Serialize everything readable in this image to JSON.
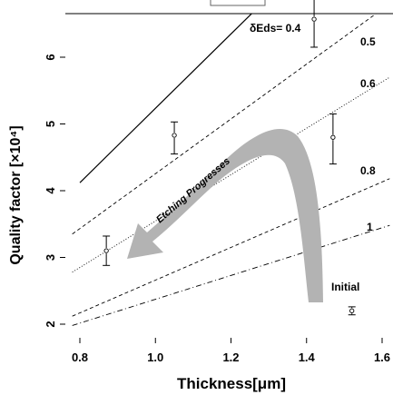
{
  "chart_data": {
    "type": "line",
    "xlabel": "Thickness[μm]",
    "ylabel": "Quality factor [×10⁴]",
    "xlim": [
      0.76,
      1.64
    ],
    "ylim": [
      1.9,
      6.95
    ],
    "x_ticks": [
      "0.8",
      "1.0",
      "1.2",
      "1.4",
      "1.6"
    ],
    "y_ticks": [
      "2",
      "3",
      "4",
      "5",
      "6"
    ],
    "grid": false,
    "series": [
      {
        "name": "δEds= 0.4",
        "style": "solid",
        "points": [
          [
            0.8,
            4.12
          ],
          [
            1.29,
            6.85
          ]
        ]
      },
      {
        "name": "0.5",
        "style": "dashed",
        "points": [
          [
            0.78,
            3.35
          ],
          [
            1.62,
            6.8
          ]
        ]
      },
      {
        "name": "0.6",
        "style": "dotted",
        "points": [
          [
            0.78,
            2.78
          ],
          [
            1.62,
            5.7
          ]
        ]
      },
      {
        "name": "0.8",
        "style": "dashed",
        "points": [
          [
            0.78,
            2.12
          ],
          [
            1.62,
            4.18
          ]
        ]
      },
      {
        "name": "1",
        "style": "dashdot",
        "points": [
          [
            0.78,
            1.98
          ],
          [
            1.62,
            3.48
          ]
        ]
      }
    ],
    "measurements": [
      {
        "x": 0.87,
        "y": 3.1,
        "yerr_low": 0.22,
        "yerr_high": 0.22
      },
      {
        "x": 1.05,
        "y": 4.83,
        "yerr_low": 0.28,
        "yerr_high": 0.2
      },
      {
        "x": 1.42,
        "y": 6.57,
        "yerr_low": 0.42,
        "yerr_high": 0.38
      },
      {
        "x": 1.47,
        "y": 4.8,
        "yerr_low": 0.4,
        "yerr_high": 0.35
      },
      {
        "x": 1.52,
        "y": 2.2,
        "yerr_low": 0.06,
        "yerr_high": 0.06
      }
    ],
    "annotations": {
      "arrow_label": "Etching Progresses",
      "initial_label": "Initial"
    }
  }
}
